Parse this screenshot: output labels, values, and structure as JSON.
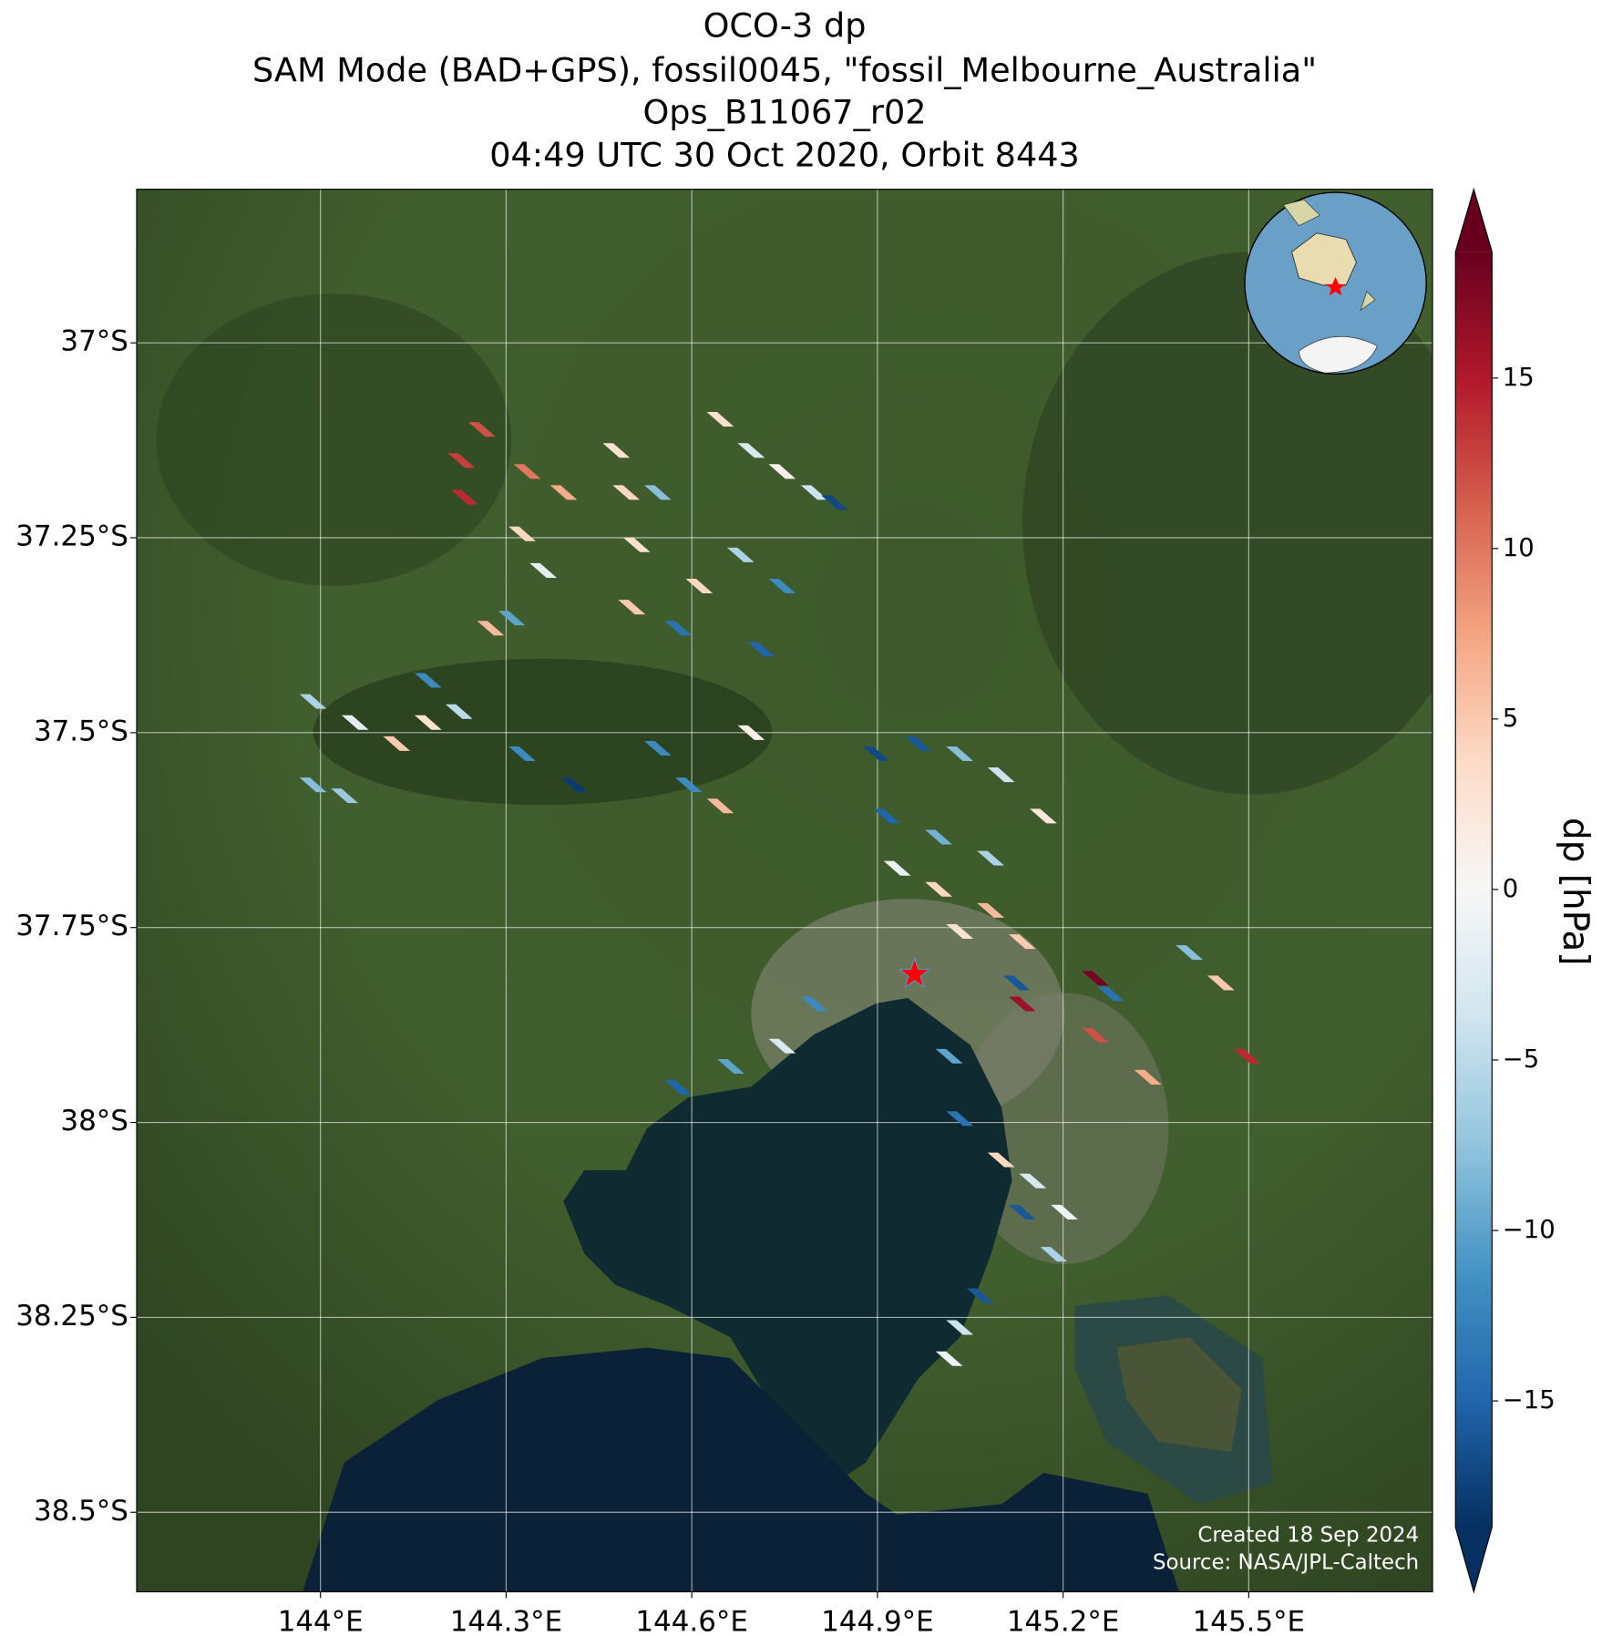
{
  "chart_data": {
    "type": "map",
    "title": [
      "OCO-3 dp",
      "SAM Mode (BAD+GPS), fossil0045, \"fossil_Melbourne_Australia\"",
      "Ops_B11067_r02",
      "04:49 UTC 30 Oct 2020, Orbit 8443"
    ],
    "xlim": [
      143.703,
      145.797
    ],
    "ylim": [
      -38.602,
      -36.803
    ],
    "xticks": [
      {
        "value": 144,
        "label": "144°E"
      },
      {
        "value": 144.3,
        "label": "144.3°E"
      },
      {
        "value": 144.6,
        "label": "144.6°E"
      },
      {
        "value": 144.9,
        "label": "144.9°E"
      },
      {
        "value": 145.2,
        "label": "145.2°E"
      },
      {
        "value": 145.5,
        "label": "145.5°E"
      }
    ],
    "yticks": [
      {
        "value": -37,
        "label": "37°S"
      },
      {
        "value": -37.25,
        "label": "37.25°S"
      },
      {
        "value": -37.5,
        "label": "37.5°S"
      },
      {
        "value": -37.75,
        "label": "37.75°S"
      },
      {
        "value": -38,
        "label": "38°S"
      },
      {
        "value": -38.25,
        "label": "38.25°S"
      },
      {
        "value": -38.5,
        "label": "38.5°S"
      }
    ],
    "grid": true,
    "colorbar": {
      "label": "dp [hPa]",
      "colormap": "RdBu_r",
      "lim": [
        -18.7,
        18.7
      ],
      "ticks": [
        {
          "value": -15,
          "label": "−15"
        },
        {
          "value": -10,
          "label": "−10"
        },
        {
          "value": -5,
          "label": "−5"
        },
        0,
        5,
        10,
        15
      ]
    },
    "target": {
      "x": 144.96,
      "y": -37.81,
      "color": "#ff0000"
    },
    "soundings": {
      "x": [
        144.261,
        144.228,
        144.233,
        144.334,
        144.393,
        144.326,
        144.36,
        144.478,
        144.494,
        144.511,
        144.503,
        144.545,
        144.646,
        144.696,
        144.746,
        144.798,
        144.831,
        144.679,
        144.746,
        144.712,
        144.612,
        144.578,
        144.275,
        144.309,
        144.174,
        144.224,
        143.988,
        144.056,
        144.123,
        144.174,
        143.988,
        144.039,
        144.326,
        144.41,
        144.545,
        144.595,
        144.646,
        144.696,
        144.898,
        144.966,
        145.033,
        145.1,
        145.168,
        144.915,
        144.999,
        145.083,
        144.932,
        144.999,
        145.083,
        145.033,
        145.134,
        145.125,
        145.134,
        145.252,
        145.277,
        145.404,
        145.455,
        145.497,
        145.252,
        145.337,
        144.798,
        144.746,
        144.663,
        144.578,
        145.016,
        145.033,
        145.1,
        145.151,
        145.134,
        145.202,
        145.185,
        145.066,
        145.033,
        145.016
      ],
      "y": [
        -37.111,
        -37.151,
        -37.198,
        -37.165,
        -37.192,
        -37.245,
        -37.292,
        -37.138,
        -37.192,
        -37.259,
        -37.339,
        -37.192,
        -37.098,
        -37.138,
        -37.165,
        -37.192,
        -37.205,
        -37.272,
        -37.312,
        -37.393,
        -37.312,
        -37.366,
        -37.366,
        -37.353,
        -37.433,
        -37.473,
        -37.46,
        -37.487,
        -37.514,
        -37.487,
        -37.567,
        -37.581,
        -37.527,
        -37.567,
        -37.52,
        -37.567,
        -37.594,
        -37.5,
        -37.527,
        -37.514,
        -37.527,
        -37.554,
        -37.607,
        -37.607,
        -37.634,
        -37.661,
        -37.674,
        -37.701,
        -37.728,
        -37.755,
        -37.768,
        -37.821,
        -37.848,
        -37.815,
        -37.835,
        -37.782,
        -37.821,
        -37.915,
        -37.888,
        -37.942,
        -37.848,
        -37.902,
        -37.928,
        -37.955,
        -37.915,
        -37.995,
        -38.048,
        -38.075,
        -38.115,
        -38.115,
        -38.169,
        -38.222,
        -38.263,
        -38.303
      ],
      "values": [
        12,
        13,
        14,
        10,
        7,
        4,
        -2,
        3,
        4,
        3,
        5,
        -8,
        3,
        -3,
        1,
        -4,
        -17,
        -6,
        -12,
        -15,
        4,
        -14,
        6,
        -10,
        -12,
        -5,
        -6,
        -2,
        5,
        3,
        -8,
        -7,
        -12,
        -18,
        -12,
        -12,
        6,
        1,
        -17,
        -16,
        -8,
        -4,
        2,
        -15,
        -9,
        -6,
        -1,
        4,
        6,
        3,
        5,
        -16,
        16,
        18,
        -14,
        -8,
        5,
        14,
        12,
        7,
        -12,
        -3,
        -10,
        -15,
        -10,
        -14,
        4,
        -3,
        -16,
        -1,
        -6,
        -16,
        -4,
        -1
      ]
    },
    "credits": [
      "Created 18 Sep 2024",
      "Source: NASA/JPL-Caltech"
    ]
  }
}
